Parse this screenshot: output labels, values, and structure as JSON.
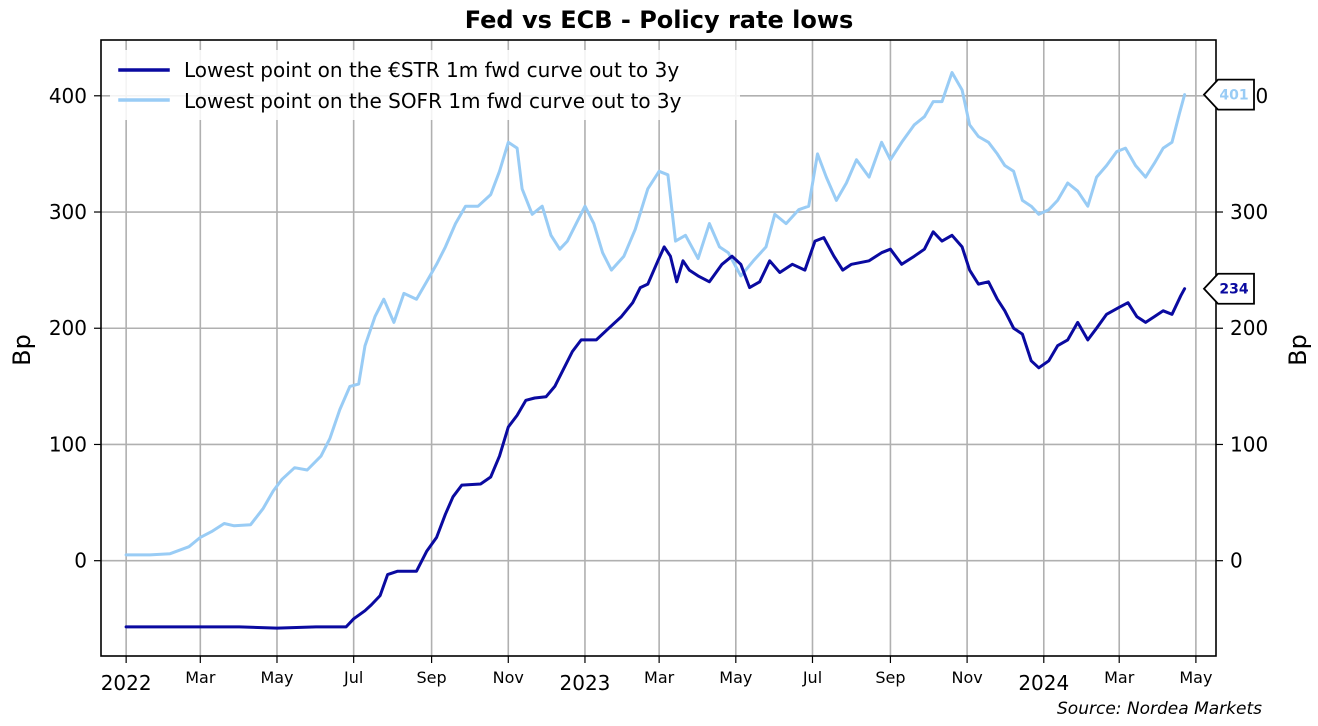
{
  "chart_data": {
    "type": "line",
    "title": "Fed vs ECB - Policy rate lows",
    "ylabel_left": "Bp",
    "ylabel_right": "Bp",
    "ylim": [
      -82,
      448
    ],
    "xlim": [
      "2021-12-12",
      "2024-05-17"
    ],
    "y_ticks": [
      0,
      100,
      200,
      300,
      400
    ],
    "grid": true,
    "legend_position": "top-left",
    "source": "Source: Nordea Markets",
    "x_ticks": [
      {
        "date": "2022-01-01",
        "label": "2022",
        "major": true
      },
      {
        "date": "2022-03-01",
        "label": "Mar",
        "major": false
      },
      {
        "date": "2022-05-01",
        "label": "May",
        "major": false
      },
      {
        "date": "2022-07-01",
        "label": "Jul",
        "major": false
      },
      {
        "date": "2022-09-01",
        "label": "Sep",
        "major": false
      },
      {
        "date": "2022-11-01",
        "label": "Nov",
        "major": false
      },
      {
        "date": "2023-01-01",
        "label": "2023",
        "major": true
      },
      {
        "date": "2023-03-01",
        "label": "Mar",
        "major": false
      },
      {
        "date": "2023-05-01",
        "label": "May",
        "major": false
      },
      {
        "date": "2023-07-01",
        "label": "Jul",
        "major": false
      },
      {
        "date": "2023-09-01",
        "label": "Sep",
        "major": false
      },
      {
        "date": "2023-11-01",
        "label": "Nov",
        "major": false
      },
      {
        "date": "2024-01-01",
        "label": "2024",
        "major": true
      },
      {
        "date": "2024-03-01",
        "label": "Mar",
        "major": false
      },
      {
        "date": "2024-05-01",
        "label": "May",
        "major": false
      }
    ],
    "series": [
      {
        "name": "Lowest point on the €STR 1m fwd curve out to 3y",
        "color": "#0a0aa0",
        "last_value_label": "234",
        "points": [
          [
            "2022-01-01",
            -57
          ],
          [
            "2022-02-01",
            -57
          ],
          [
            "2022-03-01",
            -57
          ],
          [
            "2022-04-01",
            -57
          ],
          [
            "2022-05-01",
            -58
          ],
          [
            "2022-06-01",
            -57
          ],
          [
            "2022-06-25",
            -57
          ],
          [
            "2022-07-01",
            -50
          ],
          [
            "2022-07-10",
            -43
          ],
          [
            "2022-07-15",
            -38
          ],
          [
            "2022-07-22",
            -30
          ],
          [
            "2022-07-28",
            -12
          ],
          [
            "2022-08-05",
            -9
          ],
          [
            "2022-08-20",
            -9
          ],
          [
            "2022-08-28",
            8
          ],
          [
            "2022-09-05",
            20
          ],
          [
            "2022-09-12",
            40
          ],
          [
            "2022-09-18",
            55
          ],
          [
            "2022-09-25",
            65
          ],
          [
            "2022-10-10",
            66
          ],
          [
            "2022-10-18",
            72
          ],
          [
            "2022-10-25",
            90
          ],
          [
            "2022-11-01",
            115
          ],
          [
            "2022-11-08",
            125
          ],
          [
            "2022-11-15",
            138
          ],
          [
            "2022-11-22",
            140
          ],
          [
            "2022-12-01",
            141
          ],
          [
            "2022-12-08",
            150
          ],
          [
            "2022-12-15",
            165
          ],
          [
            "2022-12-22",
            180
          ],
          [
            "2022-12-29",
            190
          ],
          [
            "2023-01-10",
            190
          ],
          [
            "2023-01-20",
            200
          ],
          [
            "2023-01-30",
            210
          ],
          [
            "2023-02-08",
            222
          ],
          [
            "2023-02-14",
            235
          ],
          [
            "2023-02-20",
            238
          ],
          [
            "2023-02-28",
            258
          ],
          [
            "2023-03-05",
            270
          ],
          [
            "2023-03-10",
            262
          ],
          [
            "2023-03-15",
            240
          ],
          [
            "2023-03-20",
            258
          ],
          [
            "2023-03-25",
            250
          ],
          [
            "2023-04-01",
            245
          ],
          [
            "2023-04-10",
            240
          ],
          [
            "2023-04-20",
            255
          ],
          [
            "2023-04-28",
            262
          ],
          [
            "2023-05-05",
            255
          ],
          [
            "2023-05-12",
            235
          ],
          [
            "2023-05-20",
            240
          ],
          [
            "2023-05-28",
            258
          ],
          [
            "2023-06-05",
            248
          ],
          [
            "2023-06-15",
            255
          ],
          [
            "2023-06-25",
            250
          ],
          [
            "2023-07-03",
            275
          ],
          [
            "2023-07-10",
            278
          ],
          [
            "2023-07-18",
            262
          ],
          [
            "2023-07-25",
            250
          ],
          [
            "2023-08-01",
            255
          ],
          [
            "2023-08-15",
            258
          ],
          [
            "2023-08-25",
            265
          ],
          [
            "2023-09-01",
            268
          ],
          [
            "2023-09-10",
            255
          ],
          [
            "2023-09-20",
            262
          ],
          [
            "2023-09-28",
            268
          ],
          [
            "2023-10-05",
            283
          ],
          [
            "2023-10-12",
            275
          ],
          [
            "2023-10-20",
            280
          ],
          [
            "2023-10-28",
            270
          ],
          [
            "2023-11-03",
            250
          ],
          [
            "2023-11-10",
            238
          ],
          [
            "2023-11-18",
            240
          ],
          [
            "2023-11-25",
            225
          ],
          [
            "2023-12-01",
            215
          ],
          [
            "2023-12-08",
            200
          ],
          [
            "2023-12-15",
            195
          ],
          [
            "2023-12-22",
            172
          ],
          [
            "2023-12-28",
            166
          ],
          [
            "2024-01-05",
            172
          ],
          [
            "2024-01-12",
            185
          ],
          [
            "2024-01-20",
            190
          ],
          [
            "2024-01-28",
            205
          ],
          [
            "2024-02-05",
            190
          ],
          [
            "2024-02-12",
            200
          ],
          [
            "2024-02-20",
            212
          ],
          [
            "2024-03-01",
            218
          ],
          [
            "2024-03-08",
            222
          ],
          [
            "2024-03-15",
            210
          ],
          [
            "2024-03-22",
            205
          ],
          [
            "2024-03-29",
            210
          ],
          [
            "2024-04-05",
            215
          ],
          [
            "2024-04-12",
            212
          ],
          [
            "2024-04-19",
            228
          ],
          [
            "2024-04-22",
            234
          ]
        ]
      },
      {
        "name": "Lowest point on the SOFR 1m fwd curve out to 3y",
        "color": "#99ccf5",
        "last_value_label": "401",
        "points": [
          [
            "2022-01-01",
            5
          ],
          [
            "2022-01-20",
            5
          ],
          [
            "2022-02-05",
            6
          ],
          [
            "2022-02-20",
            12
          ],
          [
            "2022-03-01",
            20
          ],
          [
            "2022-03-10",
            25
          ],
          [
            "2022-03-20",
            32
          ],
          [
            "2022-03-28",
            30
          ],
          [
            "2022-04-10",
            31
          ],
          [
            "2022-04-20",
            45
          ],
          [
            "2022-04-28",
            60
          ],
          [
            "2022-05-05",
            70
          ],
          [
            "2022-05-15",
            80
          ],
          [
            "2022-05-25",
            78
          ],
          [
            "2022-06-05",
            90
          ],
          [
            "2022-06-12",
            105
          ],
          [
            "2022-06-20",
            130
          ],
          [
            "2022-06-28",
            150
          ],
          [
            "2022-07-05",
            152
          ],
          [
            "2022-07-10",
            185
          ],
          [
            "2022-07-18",
            210
          ],
          [
            "2022-07-25",
            225
          ],
          [
            "2022-08-02",
            205
          ],
          [
            "2022-08-10",
            230
          ],
          [
            "2022-08-20",
            225
          ],
          [
            "2022-08-28",
            240
          ],
          [
            "2022-09-05",
            255
          ],
          [
            "2022-09-12",
            270
          ],
          [
            "2022-09-20",
            290
          ],
          [
            "2022-09-28",
            305
          ],
          [
            "2022-10-08",
            305
          ],
          [
            "2022-10-18",
            315
          ],
          [
            "2022-10-25",
            335
          ],
          [
            "2022-11-01",
            360
          ],
          [
            "2022-11-08",
            355
          ],
          [
            "2022-11-12",
            320
          ],
          [
            "2022-11-20",
            298
          ],
          [
            "2022-11-28",
            305
          ],
          [
            "2022-12-05",
            280
          ],
          [
            "2022-12-12",
            268
          ],
          [
            "2022-12-18",
            275
          ],
          [
            "2022-12-25",
            290
          ],
          [
            "2023-01-01",
            305
          ],
          [
            "2023-01-08",
            290
          ],
          [
            "2023-01-15",
            265
          ],
          [
            "2023-01-22",
            250
          ],
          [
            "2023-02-01",
            262
          ],
          [
            "2023-02-10",
            285
          ],
          [
            "2023-02-20",
            320
          ],
          [
            "2023-03-01",
            335
          ],
          [
            "2023-03-08",
            332
          ],
          [
            "2023-03-14",
            275
          ],
          [
            "2023-03-22",
            280
          ],
          [
            "2023-04-01",
            260
          ],
          [
            "2023-04-10",
            290
          ],
          [
            "2023-04-18",
            270
          ],
          [
            "2023-04-25",
            265
          ],
          [
            "2023-05-05",
            245
          ],
          [
            "2023-05-15",
            258
          ],
          [
            "2023-05-25",
            270
          ],
          [
            "2023-06-01",
            298
          ],
          [
            "2023-06-10",
            290
          ],
          [
            "2023-06-20",
            302
          ],
          [
            "2023-06-28",
            305
          ],
          [
            "2023-07-05",
            350
          ],
          [
            "2023-07-12",
            330
          ],
          [
            "2023-07-20",
            310
          ],
          [
            "2023-07-28",
            325
          ],
          [
            "2023-08-05",
            345
          ],
          [
            "2023-08-15",
            330
          ],
          [
            "2023-08-25",
            360
          ],
          [
            "2023-09-01",
            345
          ],
          [
            "2023-09-10",
            360
          ],
          [
            "2023-09-20",
            375
          ],
          [
            "2023-09-28",
            382
          ],
          [
            "2023-10-05",
            395
          ],
          [
            "2023-10-12",
            395
          ],
          [
            "2023-10-20",
            420
          ],
          [
            "2023-10-28",
            405
          ],
          [
            "2023-11-03",
            375
          ],
          [
            "2023-11-10",
            365
          ],
          [
            "2023-11-18",
            360
          ],
          [
            "2023-11-25",
            350
          ],
          [
            "2023-12-01",
            340
          ],
          [
            "2023-12-08",
            335
          ],
          [
            "2023-12-15",
            310
          ],
          [
            "2023-12-22",
            305
          ],
          [
            "2023-12-28",
            298
          ],
          [
            "2024-01-05",
            302
          ],
          [
            "2024-01-12",
            310
          ],
          [
            "2024-01-20",
            325
          ],
          [
            "2024-01-28",
            318
          ],
          [
            "2024-02-05",
            305
          ],
          [
            "2024-02-12",
            330
          ],
          [
            "2024-02-20",
            340
          ],
          [
            "2024-02-28",
            352
          ],
          [
            "2024-03-06",
            355
          ],
          [
            "2024-03-14",
            340
          ],
          [
            "2024-03-22",
            330
          ],
          [
            "2024-03-29",
            342
          ],
          [
            "2024-04-05",
            355
          ],
          [
            "2024-04-12",
            360
          ],
          [
            "2024-04-18",
            385
          ],
          [
            "2024-04-22",
            401
          ]
        ]
      }
    ]
  }
}
